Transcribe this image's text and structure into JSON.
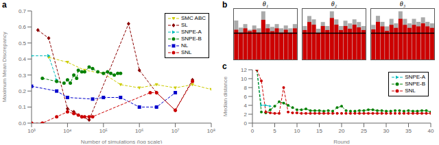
{
  "chart_data": [
    {
      "type": "line",
      "title": "a",
      "xlabel": "Number of simulations (log scale)",
      "ylabel": "Maximum Mean Discrepancy",
      "log": "x",
      "xlim": [
        1000,
        100000000
      ],
      "xticks": [
        {
          "value": 1000,
          "label": "10³"
        },
        {
          "value": 10000,
          "label": "10⁴"
        },
        {
          "value": 100000,
          "label": "10⁵"
        },
        {
          "value": 1000000,
          "label": "10⁶"
        },
        {
          "value": 10000000,
          "label": "10⁷"
        },
        {
          "value": 100000000,
          "label": "10⁸"
        }
      ],
      "ylim": [
        0.0,
        0.7
      ],
      "yticks": [
        {
          "value": 0.0,
          "label": "0.0"
        },
        0.1,
        0.2,
        0.3,
        0.4,
        0.5,
        0.6,
        0.7
      ],
      "grid": false,
      "legend": "upper right",
      "series": [
        {
          "name": "SMC ABC",
          "color": "#cccc00",
          "marker": "triangle-down",
          "line_style": "dashed",
          "x": [
            3000,
            10000,
            30000,
            100000,
            300000,
            1000000,
            3000000,
            10000000,
            30000000,
            100000000
          ],
          "values": [
            0.41,
            0.38,
            0.33,
            0.31,
            0.24,
            0.22,
            0.24,
            0.22,
            0.24,
            0.21
          ]
        },
        {
          "name": "SL",
          "color": "#8b0000",
          "marker": "diamond",
          "line_style": "dashed",
          "x": [
            1500,
            3000,
            10000,
            15000,
            25000,
            40000,
            500000,
            1000000,
            3000000,
            10000000,
            30000000
          ],
          "values": [
            0.58,
            0.53,
            0.09,
            0.07,
            0.04,
            0.02,
            0.62,
            0.33,
            0.19,
            0.08,
            0.27
          ]
        },
        {
          "name": "SNPE-A",
          "color": "#00bbbb",
          "marker": "triangle-right",
          "line_style": "dashed",
          "x": [
            1000,
            3000,
            5000
          ],
          "values": [
            0.42,
            0.42,
            0.27
          ]
        },
        {
          "name": "SNPE-B",
          "color": "#008000",
          "marker": "circle",
          "line_style": "dashed",
          "x": [
            2000,
            5000,
            8000,
            10000,
            12000,
            15000,
            18000,
            20000,
            25000,
            30000,
            40000,
            50000,
            70000,
            100000,
            130000,
            160000,
            200000,
            250000,
            300000
          ],
          "values": [
            0.28,
            0.26,
            0.25,
            0.27,
            0.25,
            0.3,
            0.28,
            0.33,
            0.32,
            0.32,
            0.35,
            0.34,
            0.32,
            0.31,
            0.32,
            0.31,
            0.3,
            0.31,
            0.31
          ]
        },
        {
          "name": "NL",
          "color": "#0000cc",
          "marker": "square",
          "line_style": "dashed",
          "x": [
            1000,
            5000,
            10000,
            50000,
            100000,
            300000,
            1000000,
            3000000,
            10000000
          ],
          "values": [
            0.23,
            0.2,
            0.16,
            0.15,
            0.16,
            0.16,
            0.1,
            0.1,
            0.19
          ]
        },
        {
          "name": "SNL",
          "color": "#cc0000",
          "marker": "circle",
          "line_style": "dashed",
          "x": [
            1000,
            2000,
            5000,
            10000,
            15000,
            20000,
            25000,
            30000,
            40000,
            50000,
            2000000,
            3000000,
            10000000,
            30000000
          ],
          "values": [
            0.0,
            0.0,
            0.04,
            0.07,
            0.06,
            0.05,
            0.04,
            0.04,
            0.04,
            0.04,
            0.19,
            0.19,
            0.08,
            0.26
          ]
        }
      ]
    },
    {
      "type": "bar",
      "title": "θ₁",
      "annotations": [
        "b"
      ],
      "categories": [
        null,
        null,
        null,
        null,
        null,
        null,
        null,
        null,
        null,
        null,
        null,
        null,
        null,
        null
      ],
      "ylim": [
        0,
        0.714
      ],
      "tick_labels": false,
      "grid": false,
      "stacked": false,
      "series": [
        {
          "color": "#aaaaaa",
          "values": [
            0.55,
            0.45,
            0.5,
            0.42,
            0.48,
            0.44,
            0.68,
            0.5,
            0.46,
            0.5,
            0.44,
            0.48,
            0.44,
            0.5
          ]
        },
        {
          "color": "#cc0000",
          "values": [
            0.42,
            0.38,
            0.44,
            0.4,
            0.42,
            0.38,
            0.56,
            0.44,
            0.4,
            0.44,
            0.38,
            0.42,
            0.38,
            0.44
          ]
        }
      ],
      "hline": {
        "value": 0.37128,
        "color": "#000000"
      }
    },
    {
      "type": "bar",
      "title": "θ₂",
      "categories": [
        null,
        null,
        null,
        null,
        null,
        null,
        null,
        null,
        null,
        null,
        null,
        null,
        null,
        null
      ],
      "ylim": [
        0,
        0.756
      ],
      "tick_labels": false,
      "grid": false,
      "stacked": false,
      "series": [
        {
          "color": "#aaaaaa",
          "values": [
            0.5,
            0.65,
            0.6,
            0.46,
            0.56,
            0.5,
            0.72,
            0.6,
            0.5,
            0.58,
            0.54,
            0.6,
            0.56,
            0.5
          ]
        },
        {
          "color": "#cc0000",
          "values": [
            0.44,
            0.56,
            0.52,
            0.4,
            0.5,
            0.44,
            0.62,
            0.52,
            0.44,
            0.5,
            0.46,
            0.52,
            0.48,
            0.44
          ]
        }
      ],
      "hline": {
        "value": 0.39312,
        "color": "#000000"
      }
    },
    {
      "type": "bar",
      "title": "θ₃",
      "categories": [
        null,
        null,
        null,
        null,
        null,
        null,
        null,
        null,
        null,
        null,
        null,
        null,
        null,
        null
      ],
      "ylim": [
        0,
        0.672
      ],
      "tick_labels": false,
      "grid": false,
      "stacked": false,
      "series": [
        {
          "color": "#aaaaaa",
          "values": [
            0.46,
            0.58,
            0.5,
            0.44,
            0.54,
            0.48,
            0.64,
            0.54,
            0.48,
            0.54,
            0.5,
            0.56,
            0.5,
            0.48
          ]
        },
        {
          "color": "#cc0000",
          "values": [
            0.4,
            0.5,
            0.44,
            0.38,
            0.46,
            0.42,
            0.54,
            0.46,
            0.42,
            0.46,
            0.44,
            0.48,
            0.44,
            0.42
          ]
        }
      ],
      "hline": {
        "value": 0.34944,
        "color": "#000000"
      }
    },
    {
      "type": "line",
      "title": "c",
      "xlabel": "Round",
      "ylabel": "Median distance",
      "xlim": [
        0,
        40
      ],
      "xticks": [
        0,
        5,
        10,
        15,
        20,
        25,
        30,
        35,
        40
      ],
      "ylim": [
        0,
        12
      ],
      "yticks": [
        0,
        2,
        4,
        6,
        8,
        10,
        12
      ],
      "grid": false,
      "legend": "upper right",
      "series": [
        {
          "name": "SNPE-A",
          "color": "#00bbbb",
          "marker": "triangle-right",
          "line_style": "dashed",
          "x": [
            1,
            2,
            3,
            4
          ],
          "values": [
            12.0,
            4.0,
            4.0,
            3.8
          ]
        },
        {
          "name": "SNPE-B",
          "color": "#008000",
          "marker": "circle",
          "line_style": "dashed",
          "x": [
            1,
            2,
            3,
            4,
            5,
            6,
            7,
            8,
            9,
            10,
            11,
            12,
            13,
            14,
            15,
            16,
            17,
            18,
            19,
            20,
            21,
            22,
            23,
            24,
            25,
            26,
            27,
            28,
            29,
            30,
            31,
            32,
            33,
            34,
            35,
            36,
            37,
            38,
            39,
            40
          ],
          "values": [
            12.0,
            2.5,
            2.3,
            3.0,
            3.8,
            4.8,
            4.5,
            4.0,
            3.5,
            3.0,
            3.0,
            3.2,
            2.8,
            2.8,
            2.8,
            2.7,
            2.8,
            2.7,
            3.5,
            3.8,
            2.8,
            2.7,
            2.7,
            2.8,
            2.8,
            3.0,
            3.0,
            2.8,
            2.8,
            2.7,
            2.7,
            2.8,
            2.8,
            2.7,
            2.8,
            2.7,
            2.7,
            2.8,
            2.8,
            2.5
          ]
        },
        {
          "name": "SNL",
          "color": "#cc0000",
          "marker": "circle",
          "line_style": "dashed",
          "x": [
            1,
            2,
            3,
            4,
            5,
            6,
            7,
            8,
            9,
            10,
            11,
            12,
            13,
            14,
            15,
            16,
            17,
            18,
            19,
            20,
            21,
            22,
            23,
            24,
            25,
            26,
            27,
            28,
            29,
            30,
            31,
            32,
            33,
            34,
            35,
            36,
            37,
            38,
            39,
            40
          ],
          "values": [
            12.0,
            9.5,
            2.5,
            2.3,
            2.2,
            2.2,
            8.0,
            2.5,
            2.3,
            2.3,
            2.2,
            2.2,
            2.2,
            2.2,
            2.2,
            2.2,
            2.2,
            2.2,
            2.2,
            2.2,
            2.2,
            2.2,
            2.2,
            2.2,
            2.2,
            2.2,
            2.2,
            2.2,
            2.2,
            2.2,
            2.2,
            2.2,
            2.2,
            2.2,
            2.2,
            2.2,
            2.2,
            2.2,
            2.2,
            2.2
          ]
        }
      ]
    }
  ]
}
